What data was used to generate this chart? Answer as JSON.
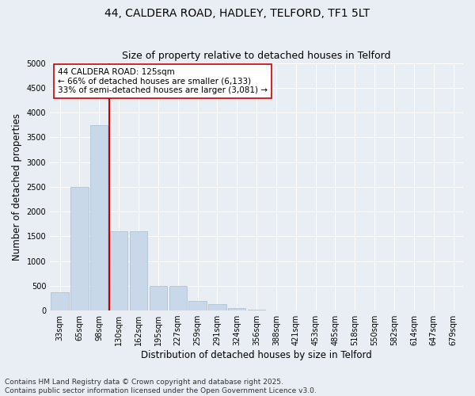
{
  "title_line1": "44, CALDERA ROAD, HADLEY, TELFORD, TF1 5LT",
  "title_line2": "Size of property relative to detached houses in Telford",
  "xlabel": "Distribution of detached houses by size in Telford",
  "ylabel": "Number of detached properties",
  "categories": [
    "33sqm",
    "65sqm",
    "98sqm",
    "130sqm",
    "162sqm",
    "195sqm",
    "227sqm",
    "259sqm",
    "291sqm",
    "324sqm",
    "356sqm",
    "388sqm",
    "421sqm",
    "453sqm",
    "485sqm",
    "518sqm",
    "550sqm",
    "582sqm",
    "614sqm",
    "647sqm",
    "679sqm"
  ],
  "values": [
    370,
    2500,
    3750,
    1600,
    1600,
    500,
    500,
    200,
    130,
    50,
    10,
    0,
    0,
    0,
    0,
    0,
    0,
    0,
    0,
    0,
    0
  ],
  "bar_color": "#c8d8e8",
  "bar_edge_color": "#a8bccb",
  "vline_color": "#cc0000",
  "annotation_text": "44 CALDERA ROAD: 125sqm\n← 66% of detached houses are smaller (6,133)\n33% of semi-detached houses are larger (3,081) →",
  "annotation_box_color": "#ffffff",
  "annotation_box_edge": "#cc0000",
  "ylim": [
    0,
    5000
  ],
  "yticks": [
    0,
    500,
    1000,
    1500,
    2000,
    2500,
    3000,
    3500,
    4000,
    4500,
    5000
  ],
  "background_color": "#e8eef4",
  "footer_line1": "Contains HM Land Registry data © Crown copyright and database right 2025.",
  "footer_line2": "Contains public sector information licensed under the Open Government Licence v3.0.",
  "title_fontsize": 10,
  "axis_label_fontsize": 8.5,
  "tick_fontsize": 7,
  "annotation_fontsize": 7.5,
  "footer_fontsize": 6.5,
  "vline_bar_index": 3
}
